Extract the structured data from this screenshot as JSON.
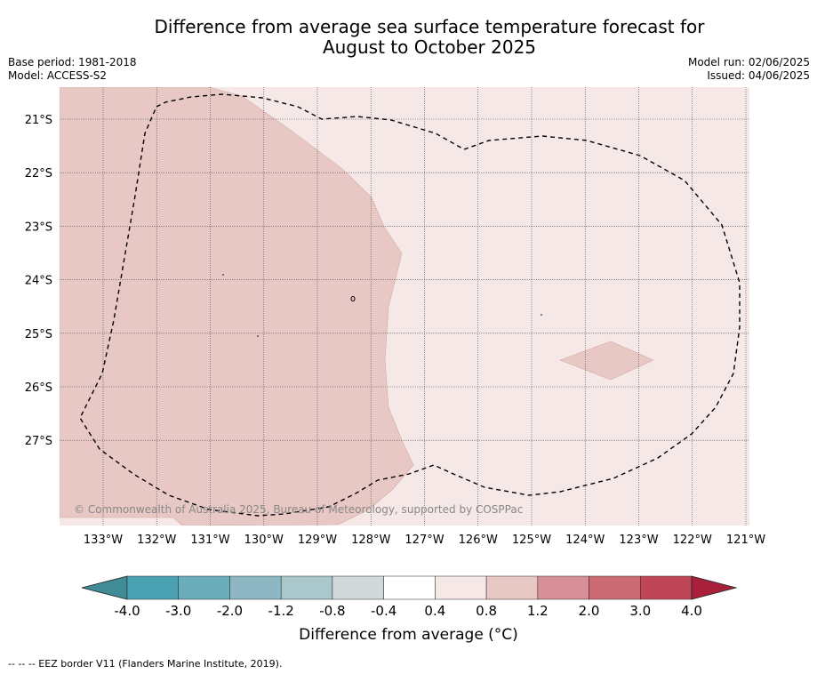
{
  "title": {
    "line1": "Difference from average sea surface temperature forecast for",
    "line2": "August to October 2025"
  },
  "meta": {
    "base_period": "Base period: 1981-2018",
    "model": "Model: ACCESS-S2",
    "model_run": "Model run: 02/06/2025",
    "issued": "Issued: 04/06/2025"
  },
  "map": {
    "lat_labels": [
      "21°S",
      "22°S",
      "23°S",
      "24°S",
      "25°S",
      "26°S",
      "27°S"
    ],
    "lon_labels": [
      "133°W",
      "132°W",
      "131°W",
      "130°W",
      "129°W",
      "128°W",
      "127°W",
      "126°W",
      "125°W",
      "124°W",
      "123°W",
      "122°W",
      "121°W"
    ],
    "copyright": "© Commonwealth of Australia 2025, Bureau of Meteorology, supported by COSPPac",
    "colors": {
      "band_0_4_to_0_8": "#f5e8e7",
      "band_0_8_to_1_2": "#e7c8c4"
    }
  },
  "colorbar": {
    "labels": [
      "-4.0",
      "-3.0",
      "-2.0",
      "-1.2",
      "-0.8",
      "-0.4",
      "0.4",
      "0.8",
      "1.2",
      "2.0",
      "3.0",
      "4.0"
    ],
    "colors": [
      "#3f8b96",
      "#4aa1b2",
      "#6badbb",
      "#8db8c3",
      "#aac7cc",
      "#d0d8da",
      "#ffffff",
      "#f5e8e7",
      "#e7c8c4",
      "#d89098",
      "#cc6a74",
      "#bf4656",
      "#a8203a"
    ],
    "title": "Difference from average (°C)"
  },
  "footer": "--  --  -- EEZ border V11 (Flanders Marine Institute, 2019)."
}
